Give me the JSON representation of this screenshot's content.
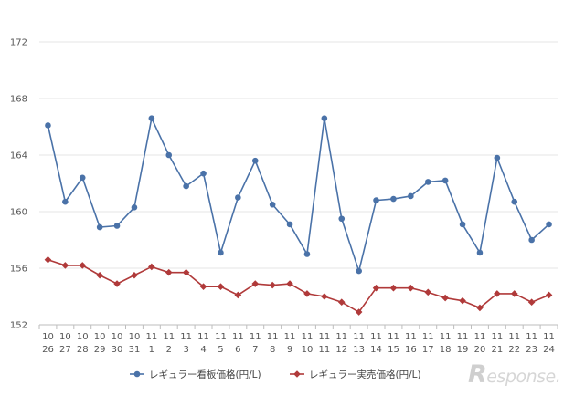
{
  "chart_data": {
    "type": "line",
    "title": "",
    "xlabel": "",
    "ylabel": "",
    "ylim": [
      152,
      172
    ],
    "yticks": [
      152,
      156,
      160,
      164,
      168,
      172
    ],
    "grid": "horizontal",
    "legend_position": "bottom",
    "categories": [
      {
        "month": "10",
        "day": "26"
      },
      {
        "month": "10",
        "day": "27"
      },
      {
        "month": "10",
        "day": "28"
      },
      {
        "month": "10",
        "day": "29"
      },
      {
        "month": "10",
        "day": "30"
      },
      {
        "month": "10",
        "day": "31"
      },
      {
        "month": "11",
        "day": "1"
      },
      {
        "month": "11",
        "day": "2"
      },
      {
        "month": "11",
        "day": "3"
      },
      {
        "month": "11",
        "day": "4"
      },
      {
        "month": "11",
        "day": "5"
      },
      {
        "month": "11",
        "day": "6"
      },
      {
        "month": "11",
        "day": "7"
      },
      {
        "month": "11",
        "day": "8"
      },
      {
        "month": "11",
        "day": "9"
      },
      {
        "month": "11",
        "day": "10"
      },
      {
        "month": "11",
        "day": "11"
      },
      {
        "month": "11",
        "day": "12"
      },
      {
        "month": "11",
        "day": "13"
      },
      {
        "month": "11",
        "day": "14"
      },
      {
        "month": "11",
        "day": "15"
      },
      {
        "month": "11",
        "day": "16"
      },
      {
        "month": "11",
        "day": "17"
      },
      {
        "month": "11",
        "day": "18"
      },
      {
        "month": "11",
        "day": "19"
      },
      {
        "month": "11",
        "day": "20"
      },
      {
        "month": "11",
        "day": "21"
      },
      {
        "month": "11",
        "day": "22"
      },
      {
        "month": "11",
        "day": "23"
      },
      {
        "month": "11",
        "day": "24"
      }
    ],
    "series": [
      {
        "name": "レギュラー看板価格(円/L)",
        "color": "#4a72a8",
        "marker": "circle",
        "values": [
          166.1,
          160.7,
          162.4,
          158.9,
          159.0,
          160.3,
          166.6,
          164.0,
          161.8,
          162.7,
          157.1,
          161.0,
          163.6,
          160.5,
          159.1,
          157.0,
          166.6,
          159.5,
          155.8,
          160.8,
          160.9,
          161.1,
          162.1,
          162.2,
          159.1,
          157.1,
          163.8,
          160.7,
          158.0,
          159.1
        ]
      },
      {
        "name": "レギュラー実売価格(円/L)",
        "color": "#b03a3a",
        "marker": "diamond",
        "values": [
          156.6,
          156.2,
          156.2,
          155.5,
          154.9,
          155.5,
          156.1,
          155.7,
          155.7,
          154.7,
          154.7,
          154.1,
          154.9,
          154.8,
          154.9,
          154.2,
          154.0,
          153.6,
          152.9,
          154.6,
          154.6,
          154.6,
          154.3,
          153.9,
          153.7,
          153.2,
          154.2,
          154.2,
          153.6,
          154.1
        ]
      }
    ]
  },
  "watermark": {
    "initial": "R",
    "rest": "esponse."
  }
}
